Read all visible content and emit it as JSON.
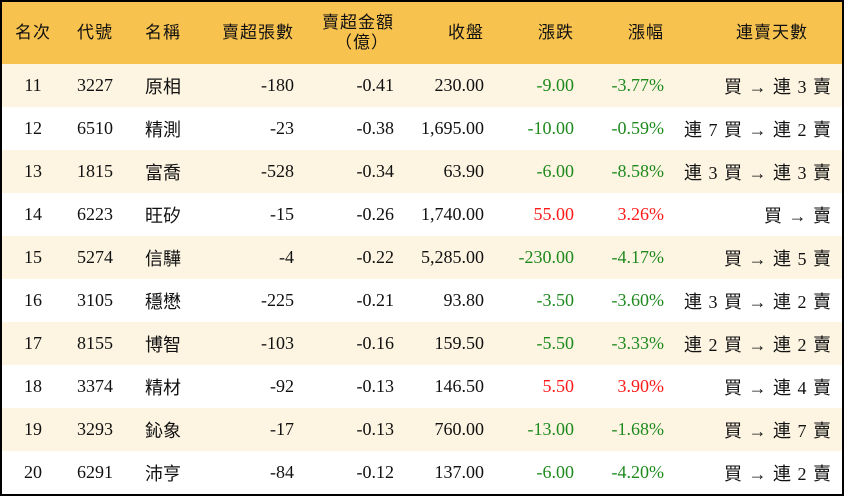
{
  "colors": {
    "header_bg": "#f8c24f",
    "stripe_bg": "#fdf5e2",
    "down": "#1e8a1e",
    "up": "#ff1a1a"
  },
  "headers": [
    "名次",
    "代號",
    "名稱",
    "賣超張數",
    "賣超金額\n（億）",
    "收盤",
    "漲跌",
    "漲幅",
    "連賣天數"
  ],
  "header_amount_line1": "賣超金額",
  "header_amount_line2": "（億）",
  "rows": [
    {
      "rank": "11",
      "code": "3227",
      "name": "原相",
      "shares": "-180",
      "amount": "-0.41",
      "close": "230.00",
      "change": "-9.00",
      "pct": "-3.77%",
      "streak": "買 → 連 3 賣",
      "dir": "neg"
    },
    {
      "rank": "12",
      "code": "6510",
      "name": "精測",
      "shares": "-23",
      "amount": "-0.38",
      "close": "1,695.00",
      "change": "-10.00",
      "pct": "-0.59%",
      "streak": "連 7 買 → 連 2 賣",
      "dir": "neg"
    },
    {
      "rank": "13",
      "code": "1815",
      "name": "富喬",
      "shares": "-528",
      "amount": "-0.34",
      "close": "63.90",
      "change": "-6.00",
      "pct": "-8.58%",
      "streak": "連 3 買 → 連 3 賣",
      "dir": "neg"
    },
    {
      "rank": "14",
      "code": "6223",
      "name": "旺矽",
      "shares": "-15",
      "amount": "-0.26",
      "close": "1,740.00",
      "change": "55.00",
      "pct": "3.26%",
      "streak": "買 → 賣",
      "dir": "pos"
    },
    {
      "rank": "15",
      "code": "5274",
      "name": "信驊",
      "shares": "-4",
      "amount": "-0.22",
      "close": "5,285.00",
      "change": "-230.00",
      "pct": "-4.17%",
      "streak": "買 → 連 5 賣",
      "dir": "neg"
    },
    {
      "rank": "16",
      "code": "3105",
      "name": "穩懋",
      "shares": "-225",
      "amount": "-0.21",
      "close": "93.80",
      "change": "-3.50",
      "pct": "-3.60%",
      "streak": "連 3 買 → 連 2 賣",
      "dir": "neg"
    },
    {
      "rank": "17",
      "code": "8155",
      "name": "博智",
      "shares": "-103",
      "amount": "-0.16",
      "close": "159.50",
      "change": "-5.50",
      "pct": "-3.33%",
      "streak": "連 2 買 → 連 2 賣",
      "dir": "neg"
    },
    {
      "rank": "18",
      "code": "3374",
      "name": "精材",
      "shares": "-92",
      "amount": "-0.13",
      "close": "146.50",
      "change": "5.50",
      "pct": "3.90%",
      "streak": "買 → 連 4 賣",
      "dir": "pos"
    },
    {
      "rank": "19",
      "code": "3293",
      "name": "鈊象",
      "shares": "-17",
      "amount": "-0.13",
      "close": "760.00",
      "change": "-13.00",
      "pct": "-1.68%",
      "streak": "買 → 連 7 賣",
      "dir": "neg"
    },
    {
      "rank": "20",
      "code": "6291",
      "name": "沛亨",
      "shares": "-84",
      "amount": "-0.12",
      "close": "137.00",
      "change": "-6.00",
      "pct": "-4.20%",
      "streak": "買 → 連 2 賣",
      "dir": "neg"
    }
  ]
}
